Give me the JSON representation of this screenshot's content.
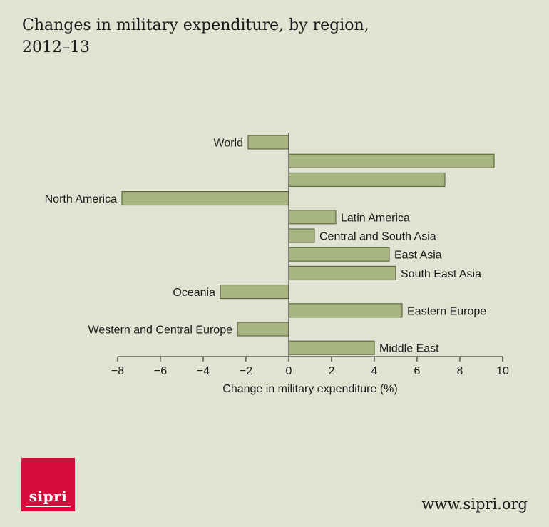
{
  "header": {
    "title_line1": "Changes in military expenditure, by region,",
    "title_line2": "2012–13"
  },
  "chart_data": {
    "type": "bar",
    "orientation": "horizontal",
    "categories": [
      "World",
      "",
      "",
      "North America",
      "Latin America",
      "Central and South Asia",
      "East Asia",
      "South East Asia",
      "Oceania",
      "Eastern Europe",
      "Western and Central Europe",
      "Middle East"
    ],
    "values": [
      -1.9,
      9.6,
      7.3,
      -7.8,
      2.2,
      1.2,
      4.7,
      5.0,
      -3.2,
      5.3,
      -2.4,
      4.0
    ],
    "xlabel": "Change in military expenditure (%)",
    "ylabel": "",
    "xlim": [
      -8,
      10
    ],
    "xticks": [
      -8,
      -6,
      -4,
      -2,
      0,
      2,
      4,
      6,
      8,
      10
    ],
    "xtick_labels": [
      "−8",
      "−6",
      "−4",
      "−2",
      "0",
      "2",
      "4",
      "6",
      "8",
      "10"
    ],
    "grid": false,
    "legend": "none",
    "colors": {
      "bar_fill": "#a8b583",
      "bar_stroke": "#4f5a33",
      "axis": "#1a1a1a"
    }
  },
  "footer": {
    "logo_text": "sipri",
    "logo_color": "#d50d3c",
    "website": "www.sipri.org"
  }
}
